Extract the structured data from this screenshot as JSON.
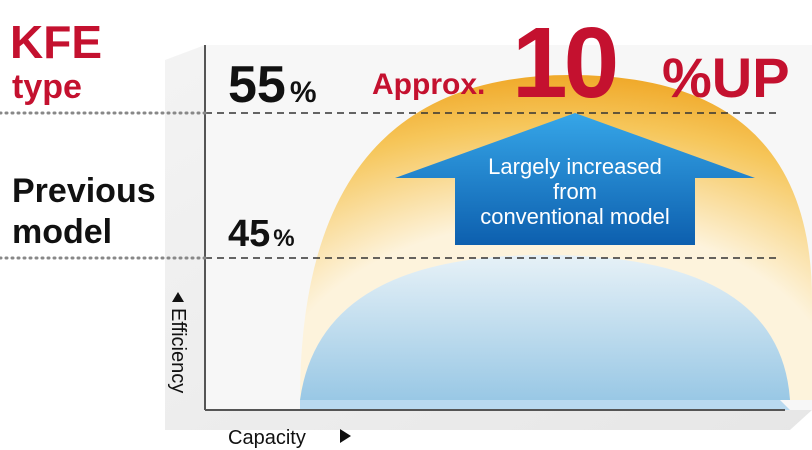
{
  "left_labels": {
    "kfe": [
      "KFE",
      "type"
    ],
    "previous": [
      "Previous",
      "model"
    ]
  },
  "levels": [
    {
      "value": "55",
      "unit": "%"
    },
    {
      "value": "45",
      "unit": "%"
    }
  ],
  "headline": {
    "prefix": "Approx.",
    "number": "10",
    "suffix": "%UP"
  },
  "arrow_text": [
    "Largely increased",
    "from",
    "conventional model"
  ],
  "axes": {
    "y": "Efficiency",
    "x": "Capacity"
  }
}
